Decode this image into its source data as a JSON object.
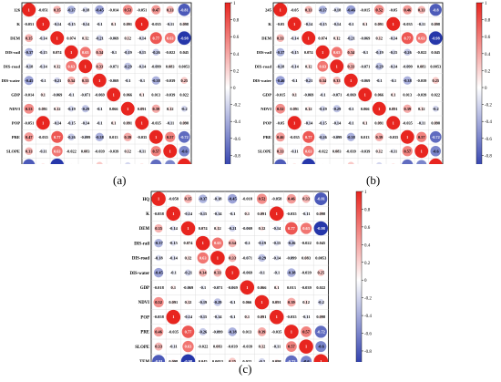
{
  "panels": [
    {
      "caption": "(a)",
      "corner_label": "126",
      "first_var": "126"
    },
    {
      "caption": "(b)",
      "corner_label": "245",
      "first_var": "245"
    },
    {
      "caption": "(c)",
      "corner_label": "HQ",
      "first_var": "HQ"
    }
  ],
  "colorbar": {
    "ticks": [
      "1",
      "0.8",
      "0.6",
      "0.4",
      "0.2",
      "0",
      "-0.2",
      "-0.4",
      "-0.6",
      "-0.8",
      "-1"
    ]
  },
  "colors": {
    "positive": "#e8251f",
    "negative": "#2233a8",
    "neutral": "#ffffff",
    "frame": "#000000"
  },
  "chart_data": [
    {
      "type": "heatmap",
      "title": "",
      "variables": [
        "126",
        "K",
        "DEM",
        "DIS-rail",
        "DIS-road",
        "DIS-water",
        "GDP",
        "NDVI",
        "POP",
        "PRE",
        "SLOPE",
        "TEM"
      ],
      "ylim": [
        -1,
        1
      ],
      "matrix": [
        [
          1,
          -0.051,
          0.35,
          -0.37,
          -0.18,
          -0.45,
          -0.014,
          0.53,
          -0.051,
          0.47,
          0.33,
          -0.81
        ],
        [
          -0.051,
          1,
          -0.14,
          -0.15,
          -0.14,
          -0.1,
          0.1,
          0.091,
          1,
          -0.035,
          -0.11,
          0.098
        ],
        [
          0.35,
          -0.14,
          1,
          0.074,
          0.12,
          -0.21,
          -0.069,
          0.12,
          -0.14,
          0.77,
          0.63,
          -0.98
        ],
        [
          -0.37,
          -0.15,
          0.074,
          1,
          0.63,
          0.34,
          -0.1,
          -0.19,
          -0.15,
          -0.26,
          -0.022,
          0.045
        ],
        [
          -0.18,
          -0.14,
          0.12,
          0.63,
          1,
          0.33,
          -0.071,
          -0.29,
          -0.14,
          -0.099,
          0.083,
          0.0053
        ],
        [
          -0.45,
          -0.1,
          -0.21,
          0.34,
          0.33,
          1,
          -0.069,
          -0.1,
          -0.1,
          -0.38,
          -0.039,
          0.25
        ],
        [
          -0.014,
          0.1,
          -0.069,
          -0.1,
          -0.071,
          -0.069,
          1,
          0.066,
          0.1,
          0.013,
          -0.039,
          0.022
        ],
        [
          0.53,
          0.091,
          0.12,
          -0.19,
          -0.29,
          -0.1,
          0.066,
          1,
          0.091,
          0.39,
          0.12,
          -0.2
        ],
        [
          -0.051,
          1,
          -0.14,
          -0.15,
          -0.14,
          -0.1,
          0.1,
          0.091,
          1,
          -0.035,
          -0.11,
          0.098
        ],
        [
          0.47,
          -0.035,
          0.77,
          -0.26,
          -0.099,
          -0.38,
          0.013,
          0.39,
          -0.035,
          1,
          0.57,
          -0.72
        ],
        [
          0.33,
          -0.11,
          0.63,
          -0.022,
          0.083,
          -0.039,
          -0.039,
          0.12,
          -0.11,
          0.57,
          1,
          -0.6
        ],
        [
          -0.81,
          0.098,
          -0.98,
          0.045,
          0.0053,
          0.25,
          0.022,
          -0.2,
          0.098,
          -0.72,
          -0.6,
          1
        ]
      ]
    },
    {
      "type": "heatmap",
      "title": "",
      "variables": [
        "245",
        "K",
        "DEM",
        "DIS-rail",
        "DIS-road",
        "DIS-water",
        "GDP",
        "NDVI",
        "POP",
        "PRE",
        "SLOPE",
        "TEM"
      ],
      "ylim": [
        -1,
        1
      ],
      "matrix": [
        [
          1,
          -0.05,
          0.33,
          -0.37,
          -0.18,
          -0.46,
          -0.015,
          0.52,
          -0.05,
          0.46,
          0.33,
          -0.8
        ],
        [
          -0.05,
          1,
          -0.14,
          -0.15,
          -0.14,
          -0.1,
          0.1,
          0.091,
          1,
          -0.035,
          -0.11,
          0.098
        ],
        [
          0.33,
          -0.14,
          1,
          0.074,
          0.12,
          -0.21,
          -0.069,
          0.12,
          -0.14,
          0.77,
          0.63,
          -0.98
        ],
        [
          -0.37,
          -0.15,
          0.074,
          1,
          0.63,
          0.34,
          -0.1,
          -0.19,
          -0.15,
          -0.26,
          -0.022,
          0.045
        ],
        [
          -0.18,
          -0.14,
          0.12,
          0.63,
          1,
          0.33,
          -0.071,
          -0.29,
          -0.14,
          -0.099,
          0.083,
          0.0053
        ],
        [
          -0.46,
          -0.1,
          -0.21,
          0.34,
          0.33,
          1,
          -0.069,
          -0.1,
          -0.1,
          -0.38,
          -0.039,
          0.25
        ],
        [
          -0.015,
          0.1,
          -0.069,
          -0.1,
          -0.071,
          -0.069,
          1,
          0.066,
          0.1,
          0.013,
          -0.039,
          0.022
        ],
        [
          0.52,
          0.091,
          0.12,
          -0.19,
          -0.29,
          -0.1,
          0.066,
          1,
          0.091,
          0.39,
          0.12,
          -0.2
        ],
        [
          -0.05,
          1,
          -0.14,
          -0.15,
          -0.14,
          -0.1,
          0.1,
          0.091,
          1,
          -0.035,
          -0.11,
          0.098
        ],
        [
          0.46,
          -0.035,
          0.77,
          -0.26,
          -0.099,
          -0.38,
          0.013,
          0.39,
          -0.035,
          1,
          0.57,
          -0.72
        ],
        [
          0.33,
          -0.11,
          0.63,
          -0.022,
          0.083,
          -0.039,
          -0.039,
          0.12,
          -0.11,
          0.57,
          1,
          -0.6
        ],
        [
          -0.8,
          0.098,
          -0.98,
          0.045,
          0.0053,
          0.25,
          0.022,
          -0.2,
          0.098,
          -0.72,
          -0.6,
          1
        ]
      ]
    },
    {
      "type": "heatmap",
      "title": "",
      "variables": [
        "HQ",
        "K",
        "DEM",
        "DIS-rail",
        "DIS-road",
        "DIS-water",
        "GDP",
        "NDVI",
        "POP",
        "PRE",
        "SLOPE",
        "TEM"
      ],
      "ylim": [
        -1,
        1
      ],
      "matrix": [
        [
          1,
          -0.058,
          0.35,
          -0.37,
          -0.18,
          -0.45,
          -0.018,
          0.52,
          -0.058,
          0.46,
          0.33,
          -0.81
        ],
        [
          -0.058,
          1,
          -0.14,
          -0.15,
          -0.14,
          -0.1,
          0.1,
          0.091,
          1,
          -0.035,
          -0.11,
          0.098
        ],
        [
          0.35,
          -0.14,
          1,
          0.074,
          0.12,
          -0.21,
          -0.069,
          0.12,
          -0.14,
          0.77,
          0.63,
          -0.98
        ],
        [
          -0.37,
          -0.15,
          0.074,
          1,
          0.63,
          0.34,
          -0.1,
          -0.19,
          -0.15,
          -0.26,
          -0.022,
          0.045
        ],
        [
          -0.18,
          -0.14,
          0.12,
          0.63,
          1,
          0.33,
          -0.071,
          -0.29,
          -0.14,
          -0.099,
          0.083,
          0.0053
        ],
        [
          -0.45,
          -0.1,
          -0.21,
          0.34,
          0.33,
          1,
          -0.069,
          -0.1,
          -0.1,
          -0.38,
          -0.039,
          0.25
        ],
        [
          -0.018,
          0.1,
          -0.069,
          -0.1,
          -0.071,
          -0.069,
          1,
          0.066,
          0.1,
          0.013,
          -0.039,
          0.022
        ],
        [
          0.52,
          0.091,
          0.12,
          -0.19,
          -0.29,
          -0.1,
          0.066,
          1,
          0.091,
          0.39,
          0.12,
          -0.2
        ],
        [
          -0.058,
          1,
          -0.14,
          -0.15,
          -0.14,
          -0.1,
          0.1,
          0.091,
          1,
          -0.035,
          -0.11,
          0.098
        ],
        [
          0.46,
          -0.035,
          0.77,
          -0.26,
          -0.099,
          -0.38,
          0.013,
          0.39,
          -0.035,
          1,
          0.57,
          -0.72
        ],
        [
          0.33,
          -0.11,
          0.63,
          -0.022,
          0.083,
          -0.039,
          -0.039,
          0.12,
          -0.11,
          0.57,
          1,
          -0.6
        ],
        [
          -0.81,
          0.098,
          -0.98,
          0.045,
          0.0053,
          0.25,
          0.022,
          -0.2,
          0.098,
          -0.72,
          -0.6,
          1
        ]
      ]
    }
  ]
}
